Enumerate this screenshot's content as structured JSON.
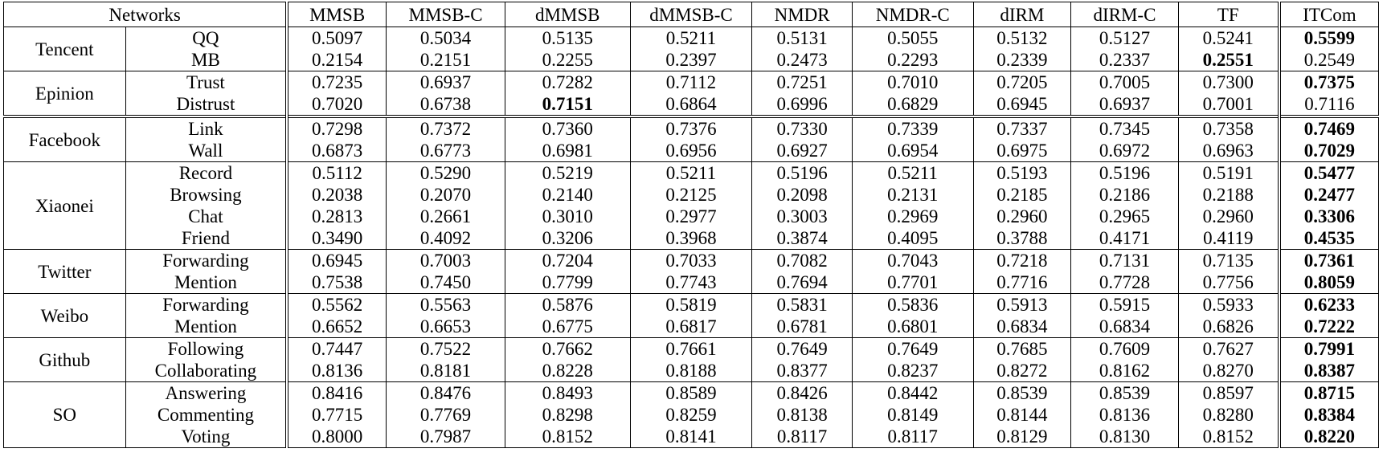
{
  "header": {
    "networks": "Networks",
    "methods": [
      "MMSB",
      "MMSB-C",
      "dMMSB",
      "dMMSB-C",
      "NMDR",
      "NMDR-C",
      "dIRM",
      "dIRM-C",
      "TF",
      "ITCom"
    ]
  },
  "groups": [
    {
      "name": "Tencent",
      "rows": [
        {
          "relation": "QQ",
          "values": [
            "0.5097",
            "0.5034",
            "0.5135",
            "0.5211",
            "0.5131",
            "0.5055",
            "0.5132",
            "0.5127",
            "0.5241",
            "0.5599"
          ]
        },
        {
          "relation": "MB",
          "values": [
            "0.2154",
            "0.2151",
            "0.2255",
            "0.2397",
            "0.2473",
            "0.2293",
            "0.2339",
            "0.2337",
            "0.2551",
            "0.2549"
          ]
        }
      ]
    },
    {
      "name": "Epinion",
      "rows": [
        {
          "relation": "Trust",
          "values": [
            "0.7235",
            "0.6937",
            "0.7282",
            "0.7112",
            "0.7251",
            "0.7010",
            "0.7205",
            "0.7005",
            "0.7300",
            "0.7375"
          ]
        },
        {
          "relation": "Distrust",
          "values": [
            "0.7020",
            "0.6738",
            "0.7151",
            "0.6864",
            "0.6996",
            "0.6829",
            "0.6945",
            "0.6937",
            "0.7001",
            "0.7116"
          ]
        }
      ]
    },
    {
      "name": "Facebook",
      "rows": [
        {
          "relation": "Link",
          "values": [
            "0.7298",
            "0.7372",
            "0.7360",
            "0.7376",
            "0.7330",
            "0.7339",
            "0.7337",
            "0.7345",
            "0.7358",
            "0.7469"
          ]
        },
        {
          "relation": "Wall",
          "values": [
            "0.6873",
            "0.6773",
            "0.6981",
            "0.6956",
            "0.6927",
            "0.6954",
            "0.6975",
            "0.6972",
            "0.6963",
            "0.7029"
          ]
        }
      ]
    },
    {
      "name": "Xiaonei",
      "rows": [
        {
          "relation": "Record",
          "values": [
            "0.5112",
            "0.5290",
            "0.5219",
            "0.5211",
            "0.5196",
            "0.5211",
            "0.5193",
            "0.5196",
            "0.5191",
            "0.5477"
          ]
        },
        {
          "relation": "Browsing",
          "values": [
            "0.2038",
            "0.2070",
            "0.2140",
            "0.2125",
            "0.2098",
            "0.2131",
            "0.2185",
            "0.2186",
            "0.2188",
            "0.2477"
          ]
        },
        {
          "relation": "Chat",
          "values": [
            "0.2813",
            "0.2661",
            "0.3010",
            "0.2977",
            "0.3003",
            "0.2969",
            "0.2960",
            "0.2965",
            "0.2960",
            "0.3306"
          ]
        },
        {
          "relation": "Friend",
          "values": [
            "0.3490",
            "0.4092",
            "0.3206",
            "0.3968",
            "0.3874",
            "0.4095",
            "0.3788",
            "0.4171",
            "0.4119",
            "0.4535"
          ]
        }
      ]
    },
    {
      "name": "Twitter",
      "rows": [
        {
          "relation": "Forwarding",
          "values": [
            "0.6945",
            "0.7003",
            "0.7204",
            "0.7033",
            "0.7082",
            "0.7043",
            "0.7218",
            "0.7131",
            "0.7135",
            "0.7361"
          ]
        },
        {
          "relation": "Mention",
          "values": [
            "0.7538",
            "0.7450",
            "0.7799",
            "0.7743",
            "0.7694",
            "0.7701",
            "0.7716",
            "0.7728",
            "0.7756",
            "0.8059"
          ]
        }
      ]
    },
    {
      "name": "Weibo",
      "rows": [
        {
          "relation": "Forwarding",
          "values": [
            "0.5562",
            "0.5563",
            "0.5876",
            "0.5819",
            "0.5831",
            "0.5836",
            "0.5913",
            "0.5915",
            "0.5933",
            "0.6233"
          ]
        },
        {
          "relation": "Mention",
          "values": [
            "0.6652",
            "0.6653",
            "0.6775",
            "0.6817",
            "0.6781",
            "0.6801",
            "0.6834",
            "0.6834",
            "0.6826",
            "0.7222"
          ]
        }
      ]
    },
    {
      "name": "Github",
      "rows": [
        {
          "relation": "Following",
          "values": [
            "0.7447",
            "0.7522",
            "0.7662",
            "0.7661",
            "0.7649",
            "0.7649",
            "0.7685",
            "0.7609",
            "0.7627",
            "0.7991"
          ]
        },
        {
          "relation": "Collaborating",
          "values": [
            "0.8136",
            "0.8181",
            "0.8228",
            "0.8188",
            "0.8377",
            "0.8237",
            "0.8272",
            "0.8162",
            "0.8270",
            "0.8387"
          ]
        }
      ]
    },
    {
      "name": "SO",
      "rows": [
        {
          "relation": "Answering",
          "values": [
            "0.8416",
            "0.8476",
            "0.8493",
            "0.8589",
            "0.8426",
            "0.8442",
            "0.8539",
            "0.8539",
            "0.8597",
            "0.8715"
          ]
        },
        {
          "relation": "Commenting",
          "values": [
            "0.7715",
            "0.7769",
            "0.8298",
            "0.8259",
            "0.8138",
            "0.8149",
            "0.8144",
            "0.8136",
            "0.8280",
            "0.8384"
          ]
        },
        {
          "relation": "Voting",
          "values": [
            "0.8000",
            "0.7987",
            "0.8152",
            "0.8141",
            "0.8117",
            "0.8117",
            "0.8129",
            "0.8130",
            "0.8152",
            "0.8220"
          ]
        }
      ]
    }
  ]
}
